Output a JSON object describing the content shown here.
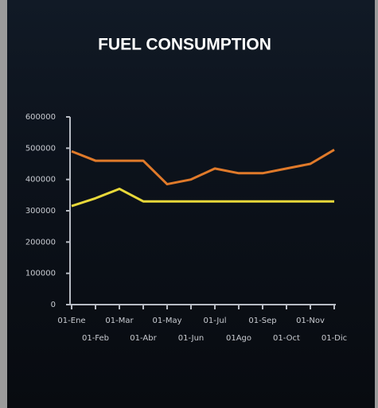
{
  "chart_data": {
    "type": "line",
    "title": "FUEL CONSUMPTION",
    "categories": [
      "01-Ene",
      "01-Feb",
      "01-Mar",
      "01-Abr",
      "01-May",
      "01-Jun",
      "01-Jul",
      "01Ago",
      "01-Sep",
      "01-Oct",
      "01-Nov",
      "01-Dic"
    ],
    "series": [
      {
        "color": "#e07a2a",
        "values": [
          490000,
          460000,
          460000,
          460000,
          385000,
          400000,
          435000,
          420000,
          420000,
          435000,
          450000,
          495000
        ]
      },
      {
        "color": "#e8d83a",
        "values": [
          315000,
          340000,
          370000,
          330000,
          330000,
          330000,
          330000,
          330000,
          330000,
          330000,
          330000,
          330000
        ]
      }
    ],
    "ylim": [
      0,
      600000
    ],
    "yticks": [
      0,
      100000,
      200000,
      300000,
      400000,
      500000,
      600000
    ]
  }
}
